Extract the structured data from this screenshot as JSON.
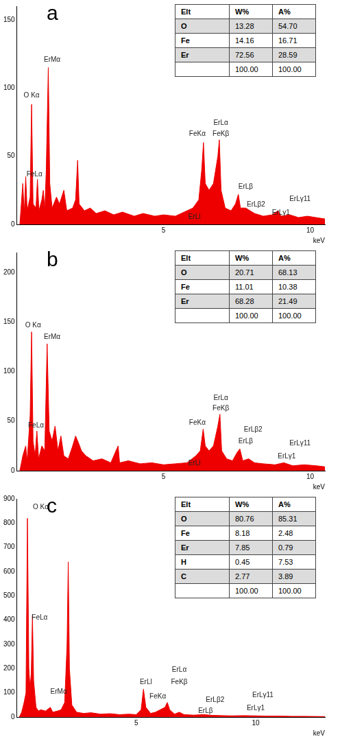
{
  "chart_data": [
    {
      "type": "line",
      "panel": "a",
      "color": "#ee0000",
      "grid": false,
      "x_label": "keV",
      "xlim": [
        0,
        10.5
      ],
      "xticks": [
        5,
        10
      ],
      "ylim": [
        0,
        160
      ],
      "yticks": [
        0,
        50,
        100,
        150
      ],
      "x": [
        0.1,
        0.2,
        0.25,
        0.3,
        0.35,
        0.45,
        0.5,
        0.55,
        0.65,
        0.7,
        0.75,
        0.85,
        0.9,
        0.95,
        1.0,
        1.07,
        1.12,
        1.2,
        1.35,
        1.45,
        1.6,
        1.7,
        1.9,
        2.0,
        2.07,
        2.12,
        2.3,
        2.5,
        2.7,
        3.0,
        3.3,
        3.6,
        4.0,
        4.3,
        4.7,
        5.0,
        5.4,
        5.7,
        6.0,
        6.2,
        6.3,
        6.36,
        6.42,
        6.55,
        6.7,
        6.85,
        6.9,
        6.96,
        7.1,
        7.3,
        7.45,
        7.55,
        7.62,
        7.8,
        7.95,
        8.1,
        8.4,
        8.7,
        8.9,
        9.0,
        9.3,
        9.6,
        9.9,
        10.2,
        10.5
      ],
      "values": [
        0,
        30,
        8,
        35,
        10,
        20,
        88,
        15,
        12,
        33,
        10,
        18,
        25,
        10,
        40,
        115,
        30,
        12,
        20,
        15,
        25,
        10,
        12,
        18,
        47,
        15,
        10,
        12,
        8,
        10,
        7,
        9,
        6,
        8,
        6,
        7,
        6,
        9,
        12,
        18,
        40,
        60,
        30,
        25,
        30,
        50,
        62,
        25,
        12,
        10,
        15,
        22,
        12,
        12,
        10,
        8,
        6,
        7,
        10,
        6,
        7,
        5,
        6,
        5,
        4
      ],
      "annotations": [
        {
          "text": "O Kα",
          "x": 0.5,
          "y": 92
        },
        {
          "text": "FeLα",
          "x": 0.6,
          "y": 34
        },
        {
          "text": "ErMα",
          "x": 1.2,
          "y": 118
        },
        {
          "text": "FeKα",
          "x": 6.15,
          "y": 64
        },
        {
          "text": "ErLα",
          "x": 6.95,
          "y": 72
        },
        {
          "text": "FeKβ",
          "x": 6.95,
          "y": 64
        },
        {
          "text": "ErLl",
          "x": 6.05,
          "y": 3
        },
        {
          "text": "ErLβ",
          "x": 7.8,
          "y": 25
        },
        {
          "text": "ErLβ2",
          "x": 8.15,
          "y": 12
        },
        {
          "text": "ErLγ1",
          "x": 9.0,
          "y": 6
        },
        {
          "text": "ErLγ11",
          "x": 9.65,
          "y": 16
        }
      ],
      "table": {
        "header": [
          "Elt",
          "W%",
          "A%"
        ],
        "rows": [
          [
            "O",
            "13.28",
            "54.70"
          ],
          [
            "Fe",
            "14.16",
            "16.71"
          ],
          [
            "Er",
            "72.56",
            "28.59"
          ],
          [
            null,
            "100.00",
            "100.00"
          ]
        ]
      }
    },
    {
      "type": "line",
      "panel": "b",
      "color": "#ee0000",
      "grid": false,
      "x_label": "keV",
      "xlim": [
        0,
        10.5
      ],
      "xticks": [
        5,
        10
      ],
      "ylim": [
        0,
        220
      ],
      "yticks": [
        0,
        50,
        100,
        150,
        200
      ],
      "x": [
        0.1,
        0.2,
        0.3,
        0.35,
        0.45,
        0.5,
        0.55,
        0.62,
        0.68,
        0.74,
        0.85,
        0.95,
        1.03,
        1.1,
        1.2,
        1.3,
        1.4,
        1.5,
        1.6,
        1.75,
        1.9,
        2.0,
        2.1,
        2.2,
        2.35,
        2.6,
        2.9,
        3.2,
        3.45,
        3.5,
        3.8,
        4.2,
        4.6,
        5.0,
        5.4,
        5.8,
        6.1,
        6.25,
        6.35,
        6.42,
        6.55,
        6.7,
        6.85,
        6.92,
        6.98,
        7.15,
        7.35,
        7.5,
        7.6,
        7.7,
        7.9,
        8.1,
        8.4,
        8.8,
        9.1,
        9.4,
        9.8,
        10.2,
        10.5
      ],
      "values": [
        0,
        15,
        25,
        10,
        55,
        140,
        30,
        15,
        40,
        12,
        25,
        20,
        128,
        40,
        30,
        45,
        20,
        35,
        15,
        12,
        25,
        35,
        28,
        20,
        15,
        10,
        12,
        8,
        25,
        8,
        10,
        7,
        8,
        6,
        7,
        8,
        15,
        20,
        42,
        25,
        20,
        25,
        45,
        57,
        20,
        12,
        10,
        18,
        22,
        10,
        12,
        8,
        7,
        6,
        8,
        5,
        6,
        5,
        4
      ],
      "annotations": [
        {
          "text": "O Kα",
          "x": 0.55,
          "y": 143
        },
        {
          "text": "FeLα",
          "x": 0.65,
          "y": 42
        },
        {
          "text": "ErMα",
          "x": 1.2,
          "y": 131
        },
        {
          "text": "FeKα",
          "x": 6.15,
          "y": 45
        },
        {
          "text": "ErLα",
          "x": 6.95,
          "y": 70
        },
        {
          "text": "FeKβ",
          "x": 6.95,
          "y": 59
        },
        {
          "text": "ErLl",
          "x": 6.05,
          "y": 4
        },
        {
          "text": "ErLβ2",
          "x": 8.05,
          "y": 38
        },
        {
          "text": "ErLβ",
          "x": 7.8,
          "y": 26
        },
        {
          "text": "ErLγ11",
          "x": 9.65,
          "y": 24
        },
        {
          "text": "ErLγ1",
          "x": 9.2,
          "y": 11
        }
      ],
      "table": {
        "header": [
          "Elt",
          "W%",
          "A%"
        ],
        "rows": [
          [
            "O",
            "20.71",
            "68.13"
          ],
          [
            "Fe",
            "11.01",
            "10.38"
          ],
          [
            "Er",
            "68.28",
            "21.49"
          ],
          [
            null,
            "100.00",
            "100.00"
          ]
        ]
      }
    },
    {
      "type": "line",
      "panel": "c",
      "color": "#ee0000",
      "grid": false,
      "x_label": "keV",
      "xlim": [
        0,
        12.9
      ],
      "xticks": [
        5,
        10
      ],
      "ylim": [
        0,
        900
      ],
      "yticks": [
        0,
        100,
        200,
        300,
        400,
        500,
        600,
        700,
        800,
        900
      ],
      "x": [
        0.1,
        0.2,
        0.3,
        0.38,
        0.44,
        0.5,
        0.55,
        0.6,
        0.65,
        0.7,
        0.8,
        0.9,
        1.0,
        1.2,
        1.4,
        1.5,
        1.7,
        1.85,
        2.0,
        2.1,
        2.15,
        2.2,
        2.3,
        2.5,
        2.8,
        3.1,
        3.5,
        3.9,
        4.3,
        4.7,
        5.0,
        5.2,
        5.3,
        5.4,
        5.6,
        5.8,
        6.2,
        6.3,
        6.4,
        6.6,
        6.8,
        7.0,
        7.4,
        7.8,
        8.2,
        8.6,
        9.0,
        9.5,
        10.0,
        10.5,
        11.0,
        11.5,
        12.0,
        12.9
      ],
      "values": [
        0,
        20,
        60,
        100,
        820,
        200,
        120,
        180,
        420,
        150,
        40,
        25,
        30,
        25,
        40,
        20,
        25,
        30,
        60,
        300,
        640,
        200,
        50,
        20,
        15,
        18,
        12,
        14,
        10,
        12,
        10,
        30,
        115,
        40,
        15,
        20,
        40,
        60,
        30,
        12,
        20,
        10,
        8,
        10,
        7,
        6,
        5,
        6,
        5,
        4,
        4,
        3,
        3,
        2
      ],
      "annotations": [
        {
          "text": "O Kα",
          "x": 1.0,
          "y": 850
        },
        {
          "text": "FeLα",
          "x": 0.95,
          "y": 395
        },
        {
          "text": "ErMα",
          "x": 1.75,
          "y": 90
        },
        {
          "text": "ErLl",
          "x": 5.4,
          "y": 130
        },
        {
          "text": "FeKα",
          "x": 5.9,
          "y": 70
        },
        {
          "text": "ErLα",
          "x": 6.8,
          "y": 180
        },
        {
          "text": "FeKβ",
          "x": 6.8,
          "y": 130
        },
        {
          "text": "ErLβ2",
          "x": 8.3,
          "y": 55
        },
        {
          "text": "ErLβ",
          "x": 7.9,
          "y": 12
        },
        {
          "text": "ErLγ11",
          "x": 10.3,
          "y": 75
        },
        {
          "text": "ErLγ1",
          "x": 10.0,
          "y": 22
        }
      ],
      "table": {
        "header": [
          "Elt",
          "W%",
          "A%"
        ],
        "rows": [
          [
            "O",
            "80.76",
            "85.31"
          ],
          [
            "Fe",
            "8.18",
            "2.48"
          ],
          [
            "Er",
            "7.85",
            "0.79"
          ],
          [
            "H",
            "0.45",
            "7.53"
          ],
          [
            "C",
            "2.77",
            "3.89"
          ],
          [
            null,
            "100.00",
            "100.00"
          ]
        ]
      }
    }
  ]
}
